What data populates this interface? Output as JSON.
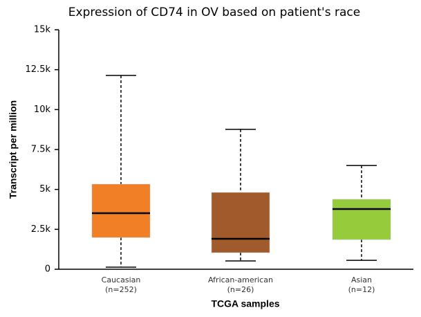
{
  "chart_data": {
    "type": "box",
    "title": "Expression of CD74 in OV based on patient's race",
    "x_label": "TCGA samples",
    "y_label": "Transcript per million",
    "categories": [
      "Caucasian",
      "African-american",
      "Asian"
    ],
    "sample_sizes": [
      "(n=252)",
      "(n=26)",
      "(n=12)"
    ],
    "colors": [
      "#f07f25",
      "#a05a2c",
      "#96cc3c"
    ],
    "min": [
      130,
      520,
      560
    ],
    "q1": [
      1990,
      1040,
      1860
    ],
    "median": [
      3510,
      1910,
      3770
    ],
    "q3": [
      5330,
      4810,
      4380
    ],
    "max": [
      12140,
      8760,
      6500
    ],
    "ylim": [
      0,
      15000
    ],
    "yticks": [
      0,
      {
        "value": 2500,
        "label": "2.5k"
      },
      {
        "value": 5000,
        "label": "5k"
      },
      {
        "value": 7500,
        "label": "7.5k"
      },
      {
        "value": 10000,
        "label": "10k"
      },
      {
        "value": 12500,
        "label": "12.5k"
      },
      {
        "value": 15000,
        "label": "15k"
      }
    ]
  }
}
